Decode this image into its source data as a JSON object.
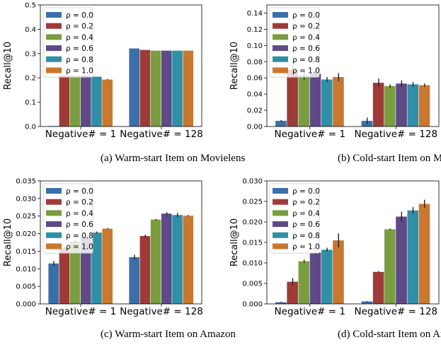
{
  "chart_data": [
    {
      "type": "bar",
      "caption": "(a)  Warm-start Item on Movielens",
      "ylabel": "Recall@10",
      "categories": [
        "Negative# = 1",
        "Negative# = 128"
      ],
      "ylim": [
        0,
        0.5
      ],
      "yticks": [
        "0.0",
        "0.1",
        "0.2",
        "0.3",
        "0.4",
        "0.5"
      ],
      "legend": "top-left",
      "grid": false,
      "series": [
        {
          "name": "ρ = 0.0",
          "color": "#3b6fa8",
          "values": [
            0.002,
            0.321
          ],
          "err": [
            0.0,
            0.0
          ]
        },
        {
          "name": "ρ = 0.2",
          "color": "#9e3b38",
          "values": [
            0.21,
            0.315
          ],
          "err": [
            0.0,
            0.0
          ]
        },
        {
          "name": "ρ = 0.4",
          "color": "#7a9d3f",
          "values": [
            0.21,
            0.312
          ],
          "err": [
            0.0,
            0.0
          ]
        },
        {
          "name": "ρ = 0.6",
          "color": "#5e4a87",
          "values": [
            0.21,
            0.312
          ],
          "err": [
            0.0,
            0.0
          ]
        },
        {
          "name": "ρ = 0.8",
          "color": "#2f8fa6",
          "values": [
            0.205,
            0.312
          ],
          "err": [
            0.0,
            0.0
          ]
        },
        {
          "name": "ρ = 1.0",
          "color": "#c9782f",
          "values": [
            0.193,
            0.312
          ],
          "err": [
            0.002,
            0.0
          ]
        }
      ]
    },
    {
      "type": "bar",
      "caption": "(b)  Cold-start Item on Movielens",
      "ylabel": "Recall@10",
      "categories": [
        "Negative# = 1",
        "Negative# = 128"
      ],
      "ylim": [
        0,
        0.15
      ],
      "yticks": [
        "0.00",
        "0.02",
        "0.04",
        "0.06",
        "0.08",
        "0.10",
        "0.12",
        "0.14"
      ],
      "legend": "top-left",
      "grid": false,
      "series": [
        {
          "name": "ρ = 0.0",
          "color": "#3b6fa8",
          "values": [
            0.007,
            0.007
          ],
          "err": [
            0.001,
            0.004
          ]
        },
        {
          "name": "ρ = 0.2",
          "color": "#9e3b38",
          "values": [
            0.07,
            0.054
          ],
          "err": [
            0.004,
            0.005
          ]
        },
        {
          "name": "ρ = 0.4",
          "color": "#7a9d3f",
          "values": [
            0.063,
            0.05
          ],
          "err": [
            0.005,
            0.002
          ]
        },
        {
          "name": "ρ = 0.6",
          "color": "#5e4a87",
          "values": [
            0.065,
            0.053
          ],
          "err": [
            0.004,
            0.004
          ]
        },
        {
          "name": "ρ = 0.8",
          "color": "#2f8fa6",
          "values": [
            0.058,
            0.052
          ],
          "err": [
            0.003,
            0.003
          ]
        },
        {
          "name": "ρ = 1.0",
          "color": "#c9782f",
          "values": [
            0.061,
            0.051
          ],
          "err": [
            0.005,
            0.002
          ]
        }
      ]
    },
    {
      "type": "bar",
      "caption": "(c)  Warm-start Item on Amazon",
      "ylabel": "Recall@10",
      "categories": [
        "Negative# = 1",
        "Negative# = 128"
      ],
      "ylim": [
        0,
        0.035
      ],
      "yticks": [
        "0.000",
        "0.005",
        "0.010",
        "0.015",
        "0.020",
        "0.025",
        "0.030",
        "0.035"
      ],
      "legend": "top-left",
      "grid": false,
      "series": [
        {
          "name": "ρ = 0.0",
          "color": "#3b6fa8",
          "values": [
            0.0115,
            0.0133
          ],
          "err": [
            0.0007,
            0.0007
          ]
        },
        {
          "name": "ρ = 0.2",
          "color": "#9e3b38",
          "values": [
            0.0158,
            0.0193
          ],
          "err": [
            0.0004,
            0.0004
          ]
        },
        {
          "name": "ρ = 0.4",
          "color": "#7a9d3f",
          "values": [
            0.0178,
            0.024
          ],
          "err": [
            0.0004,
            0.0002
          ]
        },
        {
          "name": "ρ = 0.6",
          "color": "#5e4a87",
          "values": [
            0.0188,
            0.0257
          ],
          "err": [
            0.0005,
            0.0004
          ]
        },
        {
          "name": "ρ = 0.8",
          "color": "#2f8fa6",
          "values": [
            0.0203,
            0.0253
          ],
          "err": [
            0.0003,
            0.0006
          ]
        },
        {
          "name": "ρ = 1.0",
          "color": "#c9782f",
          "values": [
            0.0214,
            0.0251
          ],
          "err": [
            0.0002,
            0.0002
          ]
        }
      ]
    },
    {
      "type": "bar",
      "caption": "(d)  Cold-start Item on Amazon",
      "ylabel": "Recall@10",
      "categories": [
        "Negative# = 1",
        "Negative# = 128"
      ],
      "ylim": [
        0,
        0.03
      ],
      "yticks": [
        "0.000",
        "0.005",
        "0.010",
        "0.015",
        "0.020",
        "0.025",
        "0.030"
      ],
      "legend": "top-left",
      "grid": false,
      "series": [
        {
          "name": "ρ = 0.0",
          "color": "#3b6fa8",
          "values": [
            0.0004,
            0.0006
          ],
          "err": [
            0.0001,
            0.0001
          ]
        },
        {
          "name": "ρ = 0.2",
          "color": "#9e3b38",
          "values": [
            0.0054,
            0.0078
          ],
          "err": [
            0.0009,
            0.0002
          ]
        },
        {
          "name": "ρ = 0.4",
          "color": "#7a9d3f",
          "values": [
            0.0104,
            0.0182
          ],
          "err": [
            0.0004,
            0.0002
          ]
        },
        {
          "name": "ρ = 0.6",
          "color": "#5e4a87",
          "values": [
            0.0125,
            0.0213
          ],
          "err": [
            0.0005,
            0.0012
          ]
        },
        {
          "name": "ρ = 0.8",
          "color": "#2f8fa6",
          "values": [
            0.0132,
            0.0228
          ],
          "err": [
            0.0005,
            0.0008
          ]
        },
        {
          "name": "ρ = 1.0",
          "color": "#c9782f",
          "values": [
            0.0155,
            0.0244
          ],
          "err": [
            0.0017,
            0.001
          ]
        }
      ]
    }
  ]
}
